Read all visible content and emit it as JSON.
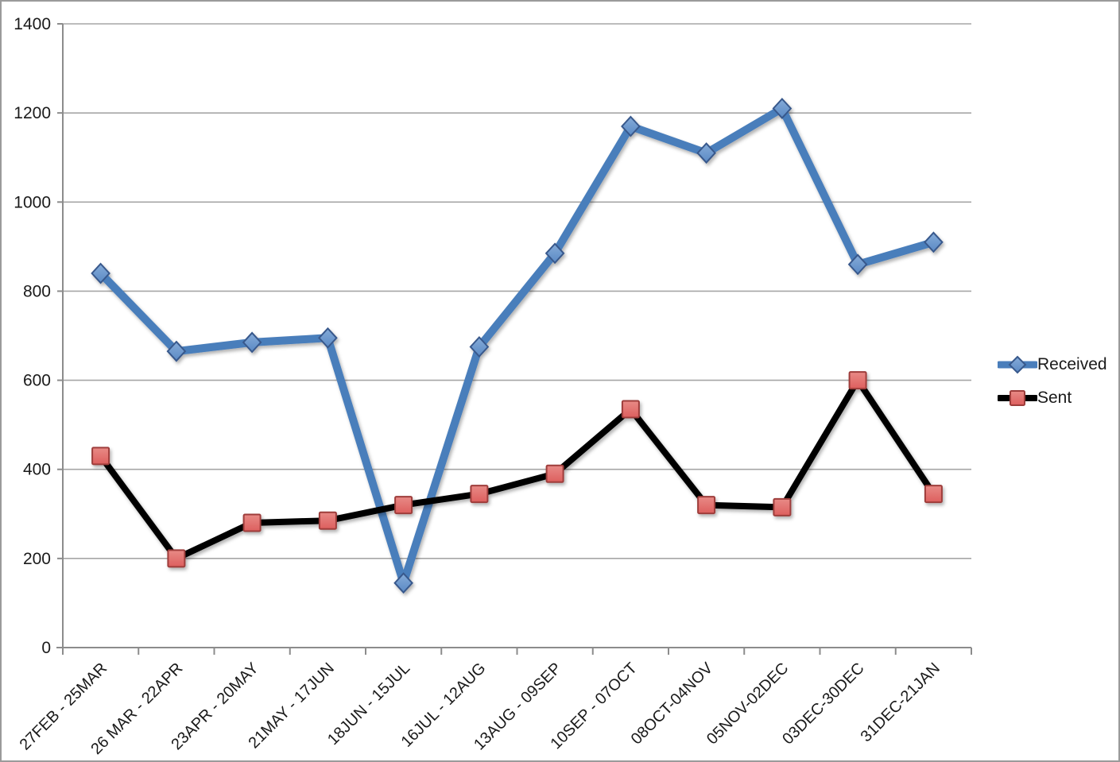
{
  "chart_data": {
    "type": "line",
    "title": "",
    "xlabel": "",
    "ylabel": "",
    "categories": [
      "27FEB - 25MAR",
      "26 MAR - 22APR",
      "23APR - 20MAY",
      "21MAY - 17JUN",
      "18JUN - 15JUL",
      "16JUL - 12AUG",
      "13AUG - 09SEP",
      "10SEP - 07OCT",
      "08OCT-04NOV",
      "05NOV-02DEC",
      "03DEC-30DEC",
      "31DEC-21JAN"
    ],
    "series": [
      {
        "name": "Received",
        "values": [
          840,
          665,
          685,
          695,
          145,
          675,
          885,
          1170,
          1110,
          1210,
          860,
          910
        ],
        "line_color": "#4a7ebb",
        "marker": "diamond",
        "marker_fill": "#5b8ac5",
        "marker_fill_light": "#85abd8",
        "marker_stroke": "#38598c"
      },
      {
        "name": "Sent",
        "values": [
          430,
          200,
          280,
          285,
          320,
          345,
          390,
          535,
          320,
          315,
          600,
          345
        ],
        "line_color": "#000000",
        "marker": "square",
        "marker_fill": "#dd5f5e",
        "marker_fill_light": "#e88a86",
        "marker_stroke": "#9e3d3b"
      }
    ],
    "ylim": [
      0,
      1400
    ],
    "ytick_step": 200,
    "ytick_labels": [
      "0",
      "200",
      "400",
      "600",
      "800",
      "1000",
      "1200",
      "1400"
    ],
    "grid": "horizontal gridlines on",
    "legend_position": "right",
    "x_label_rotation_deg": 45,
    "grid_color": "#a6a6a6",
    "axis_color": "#8c8c8c",
    "text_color": "#1a1a1a"
  }
}
